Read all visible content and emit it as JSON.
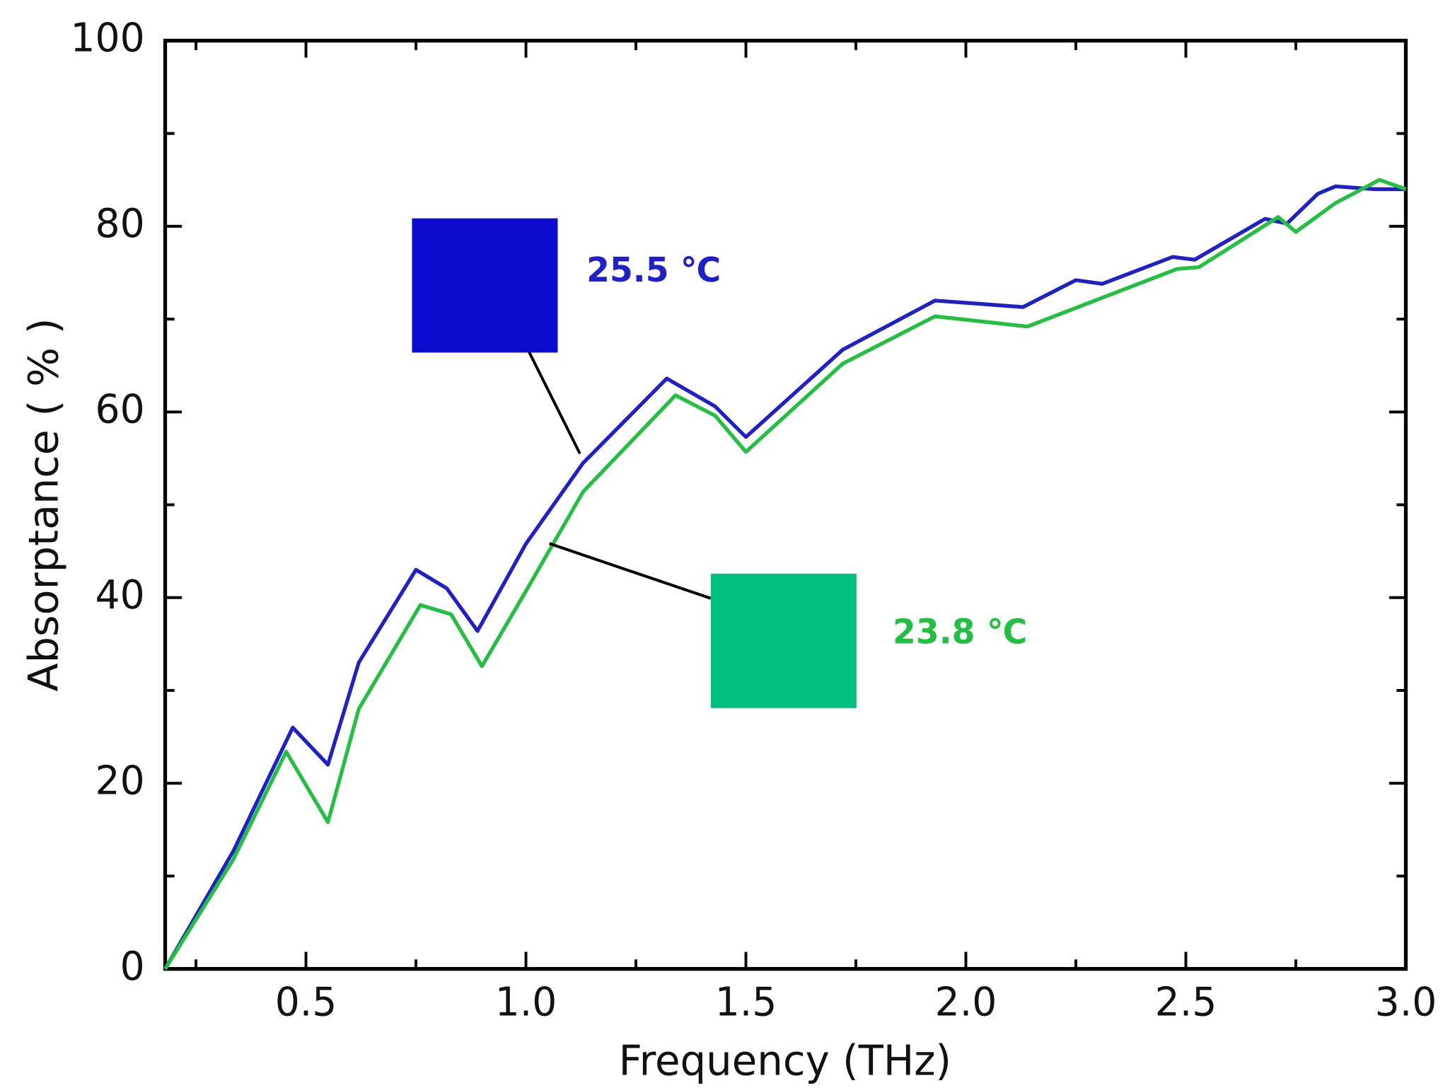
{
  "chart_data": {
    "type": "line",
    "xlabel": "Frequency (THz)",
    "ylabel": "Absorptance ( % )",
    "xlim": [
      0.18,
      3.0
    ],
    "ylim": [
      0,
      100
    ],
    "xticks": [
      0.5,
      {
        "value": 1,
        "label": "1.0"
      },
      1.5,
      {
        "value": 2,
        "label": "2.0"
      },
      2.5,
      {
        "value": 3,
        "label": "3.0"
      }
    ],
    "yticks": [
      0,
      20,
      40,
      60,
      80,
      100
    ],
    "x_minor_ticks": [
      0.25,
      0.75,
      1.25,
      1.75,
      2.25,
      2.75
    ],
    "y_minor_ticks": [
      10,
      30,
      50,
      70,
      90
    ],
    "series": [
      {
        "name": "25.5 ℃",
        "color": "#2020c8",
        "box_color": "#0c0cd0",
        "x": [
          0.18,
          0.335,
          0.47,
          0.55,
          0.62,
          0.75,
          0.82,
          0.89,
          1.0,
          1.13,
          1.32,
          1.43,
          1.5,
          1.72,
          1.93,
          2.13,
          2.25,
          2.31,
          2.47,
          2.52,
          2.68,
          2.73,
          2.8,
          2.84,
          2.93,
          3.0
        ],
        "values": [
          0,
          12.7,
          26,
          22,
          33,
          43,
          41,
          36.4,
          45.8,
          54.5,
          63.6,
          60.6,
          57.3,
          66.7,
          72,
          71.3,
          74.2,
          73.8,
          76.7,
          76.4,
          80.8,
          80.3,
          83.5,
          84.3,
          84,
          84
        ]
      },
      {
        "name": "23.8 ℃",
        "color": "#22c040",
        "box_color": "#00c080",
        "x": [
          0.18,
          0.335,
          0.455,
          0.55,
          0.62,
          0.76,
          0.83,
          0.9,
          1.0,
          1.13,
          1.34,
          1.43,
          1.5,
          1.72,
          1.93,
          2.14,
          2.31,
          2.48,
          2.53,
          2.71,
          2.75,
          2.84,
          2.94,
          3.0
        ],
        "values": [
          0,
          11.8,
          23.4,
          15.8,
          28,
          39.2,
          38.2,
          32.6,
          40.7,
          51.4,
          61.8,
          59.6,
          55.7,
          65.2,
          70.3,
          69.2,
          72.3,
          75.4,
          75.6,
          81,
          79.4,
          82.5,
          85,
          84
        ]
      }
    ]
  }
}
